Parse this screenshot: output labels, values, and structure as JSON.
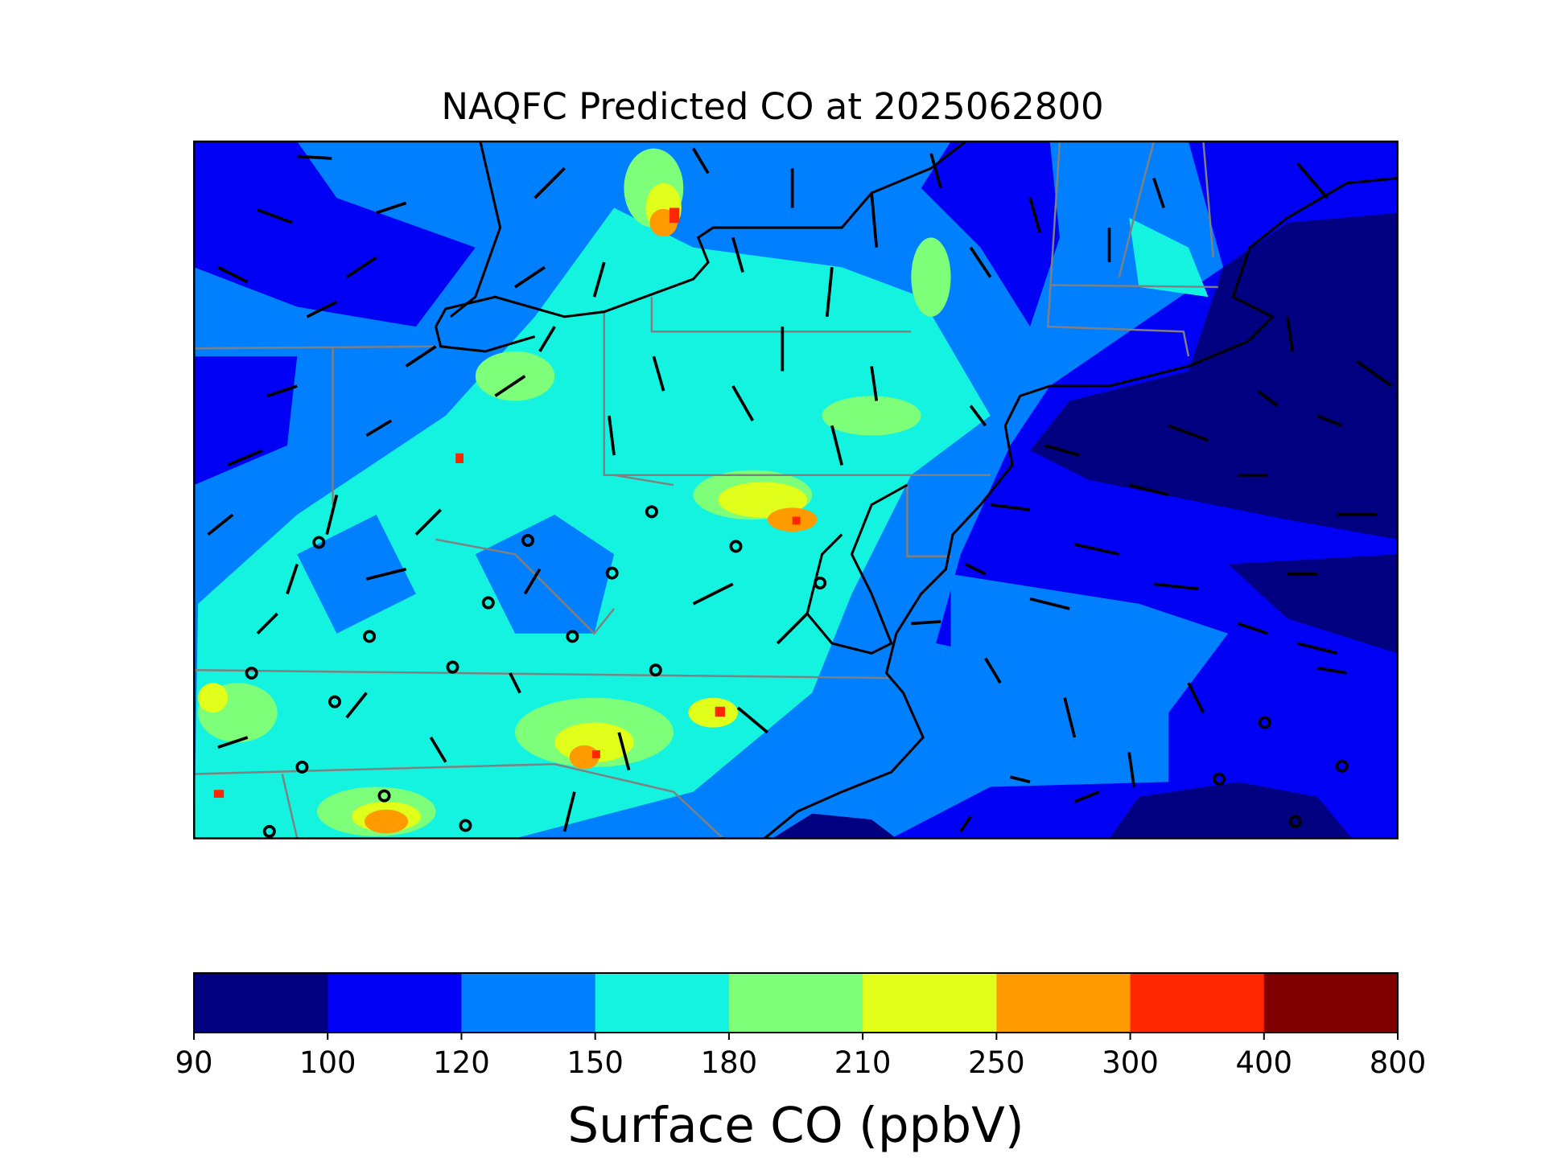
{
  "title": "NAQFC Predicted CO at 2025062800",
  "colorbar": {
    "label": "Surface CO (ppbV)",
    "bounds": [
      90,
      100,
      120,
      150,
      180,
      210,
      250,
      300,
      400,
      800
    ],
    "colors": [
      "#000080",
      "#0000f5",
      "#0080ff",
      "#13f3df",
      "#7dff7a",
      "#e0ff1a",
      "#ff9a00",
      "#ff2600",
      "#800000"
    ]
  }
}
